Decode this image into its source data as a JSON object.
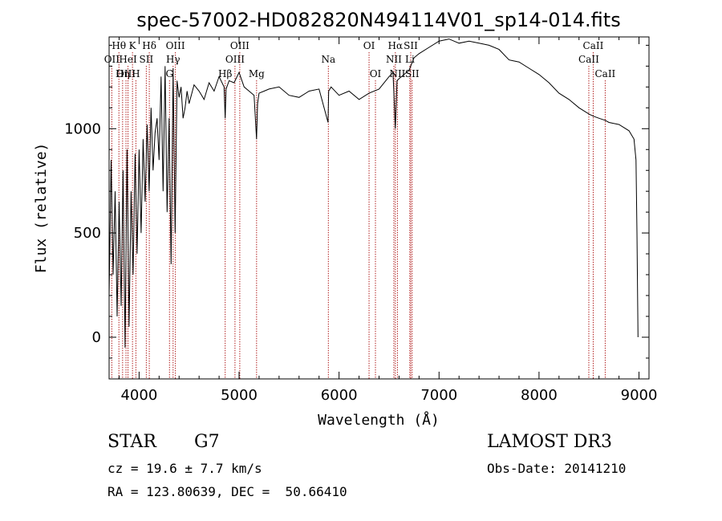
{
  "chart_data": {
    "type": "line",
    "title": "spec-57002-HD082820N494114V01_sp14-014.fits",
    "xlabel": "Wavelength (Å)",
    "ylabel": "Flux (relative)",
    "xlim": [
      3700,
      9100
    ],
    "ylim": [
      -200,
      1440
    ],
    "xticks": [
      4000,
      5000,
      6000,
      7000,
      8000,
      9000
    ],
    "yticks": [
      0,
      500,
      1000
    ],
    "line_color": "#000000",
    "marker_color": "#b22222",
    "series": [
      {
        "name": "flux",
        "x": [
          3700,
          3720,
          3740,
          3760,
          3780,
          3800,
          3820,
          3840,
          3860,
          3880,
          3900,
          3920,
          3940,
          3960,
          3980,
          4000,
          4020,
          4040,
          4060,
          4080,
          4100,
          4120,
          4140,
          4160,
          4180,
          4200,
          4220,
          4240,
          4260,
          4280,
          4300,
          4320,
          4340,
          4360,
          4380,
          4400,
          4420,
          4440,
          4460,
          4480,
          4500,
          4550,
          4600,
          4650,
          4700,
          4750,
          4800,
          4850,
          4861,
          4870,
          4900,
          4950,
          5000,
          5050,
          5100,
          5150,
          5175,
          5185,
          5200,
          5250,
          5300,
          5400,
          5500,
          5600,
          5700,
          5800,
          5890,
          5896,
          5920,
          6000,
          6100,
          6200,
          6300,
          6400,
          6500,
          6540,
          6563,
          6580,
          6600,
          6650,
          6700,
          6750,
          6800,
          6900,
          7000,
          7100,
          7200,
          7300,
          7400,
          7500,
          7600,
          7700,
          7800,
          7900,
          8000,
          8100,
          8200,
          8300,
          8400,
          8500,
          8542,
          8600,
          8662,
          8700,
          8800,
          8900,
          8950,
          8970,
          8980,
          8990
        ],
        "y": [
          200,
          850,
          300,
          700,
          100,
          650,
          150,
          800,
          -50,
          900,
          50,
          700,
          300,
          880,
          400,
          900,
          500,
          950,
          650,
          1020,
          700,
          1100,
          800,
          980,
          1050,
          850,
          1250,
          700,
          1300,
          600,
          1050,
          350,
          1290,
          500,
          1230,
          1150,
          1200,
          1050,
          1100,
          1180,
          1120,
          1210,
          1180,
          1140,
          1220,
          1180,
          1250,
          1200,
          1050,
          1190,
          1230,
          1220,
          1270,
          1200,
          1180,
          1160,
          950,
          1120,
          1170,
          1180,
          1190,
          1200,
          1160,
          1150,
          1180,
          1190,
          1030,
          1180,
          1200,
          1160,
          1180,
          1140,
          1170,
          1190,
          1250,
          1270,
          1000,
          1230,
          1240,
          1260,
          1280,
          1340,
          1360,
          1390,
          1420,
          1430,
          1410,
          1420,
          1410,
          1400,
          1380,
          1330,
          1320,
          1290,
          1260,
          1220,
          1170,
          1140,
          1100,
          1070,
          1060,
          1050,
          1040,
          1030,
          1020,
          990,
          950,
          850,
          500,
          0
        ]
      }
    ],
    "line_markers": [
      {
        "name": "Hθ",
        "wave": 3798,
        "row": 1
      },
      {
        "name": "OII",
        "wave": 3727,
        "row": 2
      },
      {
        "name": "OIII",
        "wave": 3869,
        "row": 3
      },
      {
        "name": "Hη",
        "wave": 3835,
        "row": 3
      },
      {
        "name": "K",
        "wave": 3934,
        "row": 1
      },
      {
        "name": "HeI",
        "wave": 3889,
        "row": 2
      },
      {
        "name": "H",
        "wave": 3968,
        "row": 3
      },
      {
        "name": "Hδ",
        "wave": 4102,
        "row": 1
      },
      {
        "name": "SII",
        "wave": 4072,
        "row": 2
      },
      {
        "name": "OIII",
        "wave": 4363,
        "row": 1
      },
      {
        "name": "Hγ",
        "wave": 4340,
        "row": 2
      },
      {
        "name": "G",
        "wave": 4304,
        "row": 3
      },
      {
        "name": "Hβ",
        "wave": 4861,
        "row": 3
      },
      {
        "name": "OIII",
        "wave": 5007,
        "row": 1
      },
      {
        "name": "OIII",
        "wave": 4959,
        "row": 2
      },
      {
        "name": "Mg",
        "wave": 5175,
        "row": 3
      },
      {
        "name": "Na",
        "wave": 5893,
        "row": 2
      },
      {
        "name": "OI",
        "wave": 6300,
        "row": 1
      },
      {
        "name": "OI",
        "wave": 6364,
        "row": 3
      },
      {
        "name": "Hα",
        "wave": 6563,
        "row": 1
      },
      {
        "name": "SII",
        "wave": 6717,
        "row": 1
      },
      {
        "name": "NII",
        "wave": 6548,
        "row": 2
      },
      {
        "name": "Li",
        "wave": 6708,
        "row": 2
      },
      {
        "name": "NII",
        "wave": 6584,
        "row": 3
      },
      {
        "name": "SII",
        "wave": 6731,
        "row": 3
      },
      {
        "name": "CaII",
        "wave": 8542,
        "row": 1
      },
      {
        "name": "CaII",
        "wave": 8498,
        "row": 2
      },
      {
        "name": "CaII",
        "wave": 8662,
        "row": 3
      }
    ]
  },
  "info": {
    "object_class": "STAR",
    "subclass": "G7",
    "survey": "LAMOST DR3",
    "redshift_line": "cz = 19.6 ± 7.7 km/s",
    "obs_date_line": "Obs-Date: 20141210",
    "coords_line": "RA = 123.80639, DEC =  50.66410"
  }
}
